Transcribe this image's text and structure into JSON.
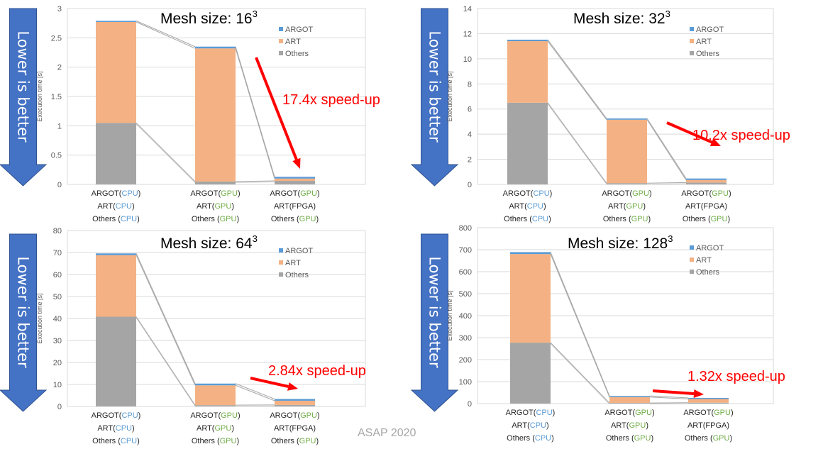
{
  "arrow_label": "Lower is better",
  "footer": "ASAP 2020",
  "colors": {
    "argot": "#5b9bd5",
    "art": "#f4b183",
    "others": "#a5a5a5",
    "cpu": "#5b9bd5",
    "gpu": "#70ad47",
    "speedup": "#ff0000",
    "arrow": "#4472c4"
  },
  "categories": [
    [
      {
        "t": "ARGOT("
      },
      {
        "t": "CPU",
        "c": "cpu"
      },
      {
        "t": ")"
      }
    ],
    [
      {
        "t": "ART("
      },
      {
        "t": "CPU",
        "c": "cpu"
      },
      {
        "t": ")"
      }
    ],
    [
      {
        "t": "Others ("
      },
      {
        "t": "CPU",
        "c": "cpu"
      },
      {
        "t": ")"
      }
    ],
    [
      {
        "t": "ARGOT("
      },
      {
        "t": "GPU",
        "c": "gpu"
      },
      {
        "t": ")"
      }
    ],
    [
      {
        "t": "ART("
      },
      {
        "t": "GPU",
        "c": "gpu"
      },
      {
        "t": ")"
      }
    ],
    [
      {
        "t": "Others ("
      },
      {
        "t": "GPU",
        "c": "gpu"
      },
      {
        "t": ")"
      }
    ],
    [
      {
        "t": "ARGOT("
      },
      {
        "t": "GPU",
        "c": "gpu"
      },
      {
        "t": ")"
      }
    ],
    [
      {
        "t": "ART(FPGA)"
      }
    ],
    [
      {
        "t": "Others ("
      },
      {
        "t": "GPU",
        "c": "gpu"
      },
      {
        "t": ")"
      }
    ]
  ],
  "chart_data": [
    {
      "type": "bar",
      "title": "Mesh size: 16",
      "title_sup": "3",
      "ylabel": "Execution time [s]",
      "ylim": [
        0,
        3
      ],
      "yticks": [
        "0",
        "0.5",
        "1",
        "1.5",
        "2",
        "2.5",
        "3"
      ],
      "legend": [
        "ARGOT",
        "ART",
        "Others"
      ],
      "series": [
        {
          "name": "Others",
          "values": [
            1.05,
            0.05,
            0.06
          ]
        },
        {
          "name": "ART",
          "values": [
            1.72,
            2.27,
            0.04
          ]
        },
        {
          "name": "ARGOT",
          "values": [
            0.02,
            0.03,
            0.03
          ]
        }
      ],
      "annotation": "17.4x speed-up"
    },
    {
      "type": "bar",
      "title": "Mesh size: 32",
      "title_sup": "3",
      "ylabel": "Execution time [s]",
      "ylim": [
        0,
        14
      ],
      "yticks": [
        "0",
        "2",
        "4",
        "6",
        "8",
        "10",
        "12",
        "14"
      ],
      "legend": [
        "ARGOT",
        "ART",
        "Others"
      ],
      "series": [
        {
          "name": "Others",
          "values": [
            6.5,
            0.1,
            0.15
          ]
        },
        {
          "name": "ART",
          "values": [
            4.9,
            5.05,
            0.2
          ]
        },
        {
          "name": "ARGOT",
          "values": [
            0.12,
            0.1,
            0.12
          ]
        }
      ],
      "annotation": "10.2x speed-up"
    },
    {
      "type": "bar",
      "title": "Mesh size: 64",
      "title_sup": "3",
      "ylabel": "Execution time [s]",
      "ylim": [
        0,
        80
      ],
      "yticks": [
        "0",
        "10",
        "20",
        "30",
        "40",
        "50",
        "60",
        "70",
        "80"
      ],
      "legend": [
        "ARGOT",
        "ART",
        "Others"
      ],
      "series": [
        {
          "name": "Others",
          "values": [
            40.8,
            0.6,
            0.7
          ]
        },
        {
          "name": "ART",
          "values": [
            28.0,
            9.0,
            1.9
          ]
        },
        {
          "name": "ARGOT",
          "values": [
            0.8,
            0.8,
            0.8
          ]
        }
      ],
      "annotation": "2.84x speed-up"
    },
    {
      "type": "bar",
      "title": "Mesh size: 128",
      "title_sup": "3",
      "ylabel": "Execution time [s]",
      "ylim": [
        0,
        800
      ],
      "yticks": [
        "0",
        "100",
        "200",
        "300",
        "400",
        "500",
        "600",
        "700",
        "800"
      ],
      "legend": [
        "ARGOT",
        "ART",
        "Others"
      ],
      "series": [
        {
          "name": "Others",
          "values": [
            277,
            3,
            4
          ]
        },
        {
          "name": "ART",
          "values": [
            403,
            27,
            17
          ]
        },
        {
          "name": "ARGOT",
          "values": [
            9,
            5,
            5
          ]
        }
      ],
      "annotation": "1.32x speed-up"
    }
  ]
}
